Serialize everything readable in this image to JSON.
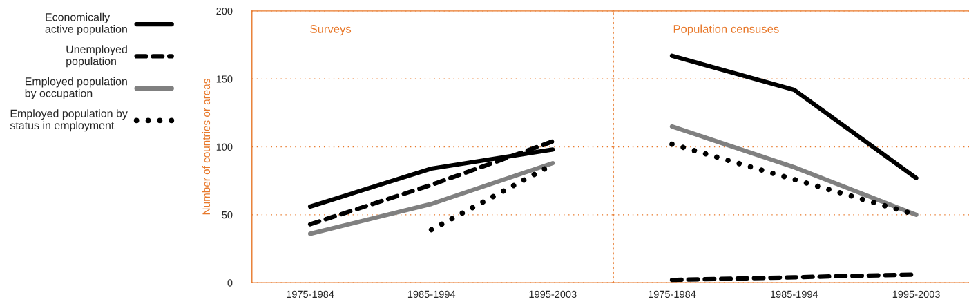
{
  "chart_data": [
    {
      "type": "line",
      "title": "Surveys",
      "ylabel": "Number of countries or areas",
      "categories": [
        "1975-1984",
        "1985-1994",
        "1995-2003"
      ],
      "ylim": [
        0,
        200
      ],
      "yticks": [
        0,
        50,
        100,
        150,
        200
      ],
      "grid": "y",
      "legend": "left",
      "series": [
        {
          "name": "Economically active population",
          "color": "#000000",
          "line_style": "solid",
          "values": [
            56,
            84,
            98
          ]
        },
        {
          "name": "Unemployed population",
          "color": "#000000",
          "line_style": "dashed",
          "values": [
            43,
            72,
            104
          ]
        },
        {
          "name": "Employed population by occupation",
          "color": "#808080",
          "line_style": "solid",
          "values": [
            36,
            58,
            88
          ]
        },
        {
          "name": "Employed population by status in employment",
          "color": "#000000",
          "line_style": "dotted",
          "values": [
            null,
            39,
            87
          ]
        }
      ]
    },
    {
      "type": "line",
      "title": "Population censuses",
      "categories": [
        "1975-1984",
        "1985-1994",
        "1995-2003"
      ],
      "ylim": [
        0,
        200
      ],
      "yticks": [
        0,
        50,
        100,
        150,
        200
      ],
      "grid": "y",
      "tick_labels": "x",
      "series": [
        {
          "color": "#000000",
          "line_style": "solid",
          "values": [
            167,
            142,
            77
          ]
        },
        {
          "color": "#000000",
          "line_style": "dashed",
          "values": [
            2,
            4,
            6
          ]
        },
        {
          "color": "#808080",
          "line_style": "solid",
          "values": [
            115,
            85,
            50
          ]
        },
        {
          "color": "#000000",
          "line_style": "dotted",
          "values": [
            102,
            76,
            50
          ]
        }
      ]
    }
  ]
}
